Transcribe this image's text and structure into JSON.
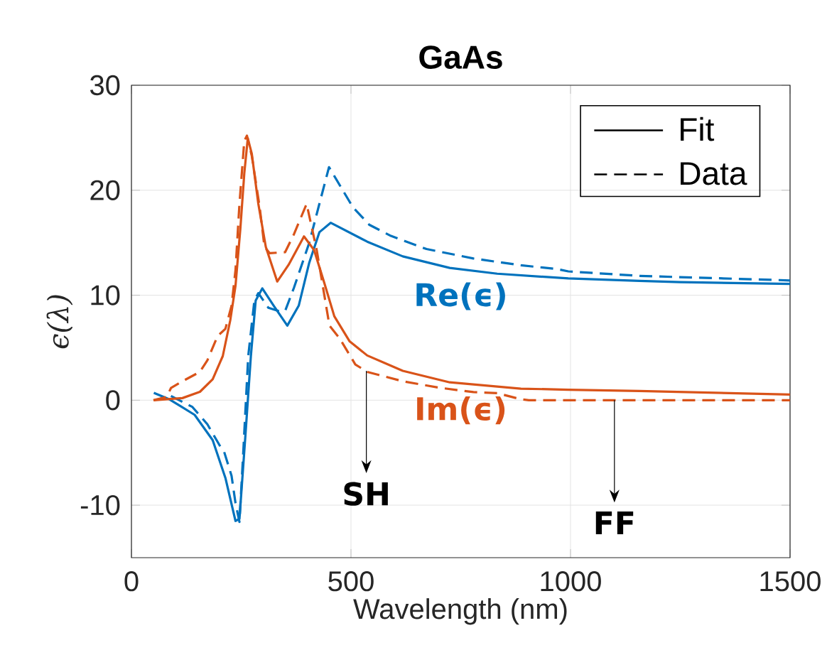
{
  "chart_data": {
    "type": "line",
    "title": "GaAs",
    "xlabel": "Wavelength (nm)",
    "ylabel": "ϵ(λ)",
    "xlim": [
      0,
      1500
    ],
    "ylim": [
      -15,
      30
    ],
    "xticks": [
      0,
      500,
      1000,
      1500
    ],
    "yticks": [
      -10,
      0,
      10,
      20,
      30
    ],
    "grid": true,
    "series": [
      {
        "name": "Re(ϵ)",
        "color": "#0072bd",
        "line_style": "solid",
        "x": [
          51,
          87,
          144,
          185,
          214,
          237,
          246,
          260,
          272,
          283,
          298,
          324,
          355,
          381,
          405,
          428,
          454,
          537,
          618,
          725,
          833,
          995,
          1157,
          1250,
          1500
        ],
        "values": [
          0.7,
          0.07,
          -1.4,
          -3.8,
          -7.4,
          -11.5,
          -11.3,
          -3.1,
          4.2,
          9.5,
          10.65,
          9.0,
          7.1,
          9.0,
          13.1,
          16.0,
          16.9,
          15.1,
          13.7,
          12.6,
          12.05,
          11.6,
          11.37,
          11.25,
          11.08
        ]
      },
      {
        "color": "#0072bd",
        "line_style": "dashed",
        "x": [
          90,
          139,
          173,
          205,
          211,
          228,
          237,
          246,
          254,
          266,
          280,
          289,
          312,
          335,
          350,
          370,
          405,
          428,
          450,
          477,
          504,
          542,
          591,
          672,
          779,
          887,
          968,
          995,
          1157,
          1476,
          1500
        ],
        "values": [
          0.4,
          -0.65,
          -2.3,
          -4.6,
          -4.9,
          -7.2,
          -9.8,
          -11.6,
          -5.5,
          4.2,
          9.5,
          10.2,
          8.8,
          8.5,
          8.5,
          10.7,
          15.0,
          18.7,
          22.2,
          20.3,
          18.4,
          16.7,
          15.65,
          14.4,
          13.5,
          12.85,
          12.5,
          12.27,
          11.84,
          11.44,
          11.4
        ]
      },
      {
        "name": "Im(ϵ)",
        "color": "#d95319",
        "line_style": "solid",
        "x": [
          51,
          116,
          156,
          185,
          208,
          225,
          237,
          248,
          257,
          265,
          274,
          289,
          306,
          332,
          358,
          393,
          416,
          439,
          462,
          497,
          537,
          618,
          725,
          887,
          995,
          1157,
          1500
        ],
        "values": [
          0,
          0.2,
          0.8,
          2.0,
          4.2,
          7.6,
          10.9,
          16.3,
          21.6,
          24.95,
          23.5,
          18.7,
          14.6,
          11.3,
          12.9,
          15.6,
          14.3,
          11.2,
          8.0,
          5.6,
          4.26,
          2.8,
          1.7,
          1.1,
          1.0,
          0.88,
          0.54
        ]
      },
      {
        "color": "#d95319",
        "line_style": "dashed",
        "x": [
          50,
          80,
          90,
          116,
          156,
          173,
          196,
          214,
          228,
          237,
          246,
          257,
          263,
          274,
          292,
          303,
          315,
          350,
          370,
          399,
          422,
          451,
          474,
          510,
          537,
          618,
          699,
          779,
          833,
          887,
          905,
          1500
        ],
        "values": [
          0,
          0.3,
          1.16,
          1.8,
          2.7,
          3.8,
          6.1,
          6.8,
          9.0,
          12.4,
          18.7,
          24.7,
          25.2,
          23.3,
          18.4,
          14.6,
          14.0,
          14.1,
          15.8,
          18.7,
          14.3,
          7.1,
          5.9,
          3.4,
          2.7,
          1.8,
          1.2,
          0.77,
          0.67,
          0.09,
          0,
          0
        ]
      }
    ],
    "annotations": [
      "Fit",
      "Data",
      {
        "text": "SH",
        "x": 535,
        "y": 2.8
      },
      {
        "text": "FF",
        "x": 1100,
        "y": 0
      }
    ]
  }
}
